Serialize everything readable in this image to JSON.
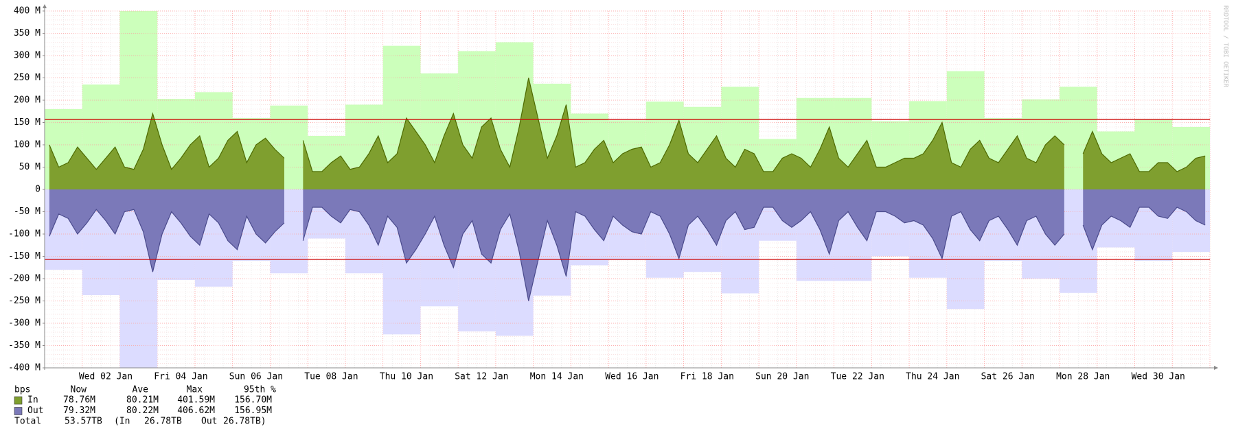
{
  "chart_data": {
    "type": "area",
    "categories": [
      null,
      null,
      null,
      null,
      null,
      null,
      "Wed 02 Jan",
      null,
      null,
      null,
      null,
      null,
      null,
      null,
      "Fri 04 Jan",
      null,
      null,
      null,
      null,
      null,
      null,
      null,
      "Sun 06 Jan",
      null,
      null,
      null,
      null,
      null,
      null,
      null,
      "Tue 08 Jan",
      null,
      null,
      null,
      null,
      null,
      null,
      null,
      "Thu 10 Jan",
      null,
      null,
      null,
      null,
      null,
      null,
      null,
      "Sat 12 Jan",
      null,
      null,
      null,
      null,
      null,
      null,
      null,
      "Mon 14 Jan",
      null,
      null,
      null,
      null,
      null,
      null,
      null,
      "Wed 16 Jan",
      null,
      null,
      null,
      null,
      null,
      null,
      null,
      "Fri 18 Jan",
      null,
      null,
      null,
      null,
      null,
      null,
      null,
      "Sun 20 Jan",
      null,
      null,
      null,
      null,
      null,
      null,
      null,
      "Tue 22 Jan",
      null,
      null,
      null,
      null,
      null,
      null,
      null,
      "Thu 24 Jan",
      null,
      null,
      null,
      null,
      null,
      null,
      null,
      "Sat 26 Jan",
      null,
      null,
      null,
      null,
      null,
      null,
      null,
      "Mon 28 Jan",
      null,
      null,
      null,
      null,
      null,
      null,
      null,
      "Wed 30 Jan",
      null,
      null,
      null,
      null,
      null
    ],
    "series": [
      {
        "name": "In",
        "color": "#7f9f2f",
        "line_color": "#4d6a00",
        "peak_color": "#ccffbb",
        "values": [
          100,
          50,
          60,
          95,
          70,
          45,
          70,
          95,
          50,
          45,
          90,
          170,
          100,
          45,
          70,
          100,
          120,
          50,
          70,
          110,
          130,
          60,
          100,
          115,
          90,
          70,
          null,
          110,
          40,
          40,
          60,
          75,
          45,
          50,
          80,
          120,
          60,
          80,
          160,
          130,
          100,
          60,
          120,
          170,
          100,
          70,
          140,
          160,
          90,
          50,
          140,
          250,
          160,
          70,
          120,
          190,
          50,
          60,
          90,
          110,
          60,
          80,
          90,
          95,
          50,
          60,
          100,
          155,
          80,
          60,
          90,
          120,
          70,
          50,
          90,
          80,
          40,
          40,
          70,
          80,
          70,
          50,
          90,
          140,
          70,
          50,
          80,
          110,
          50,
          50,
          60,
          70,
          70,
          80,
          110,
          150,
          60,
          50,
          90,
          110,
          70,
          60,
          90,
          120,
          70,
          60,
          100,
          120,
          100,
          null,
          80,
          130,
          80,
          60,
          70,
          80,
          40,
          40,
          60,
          60,
          40,
          50,
          70,
          75
        ],
        "peak_values": [
          180,
          235,
          400,
          203,
          218,
          160,
          188,
          120,
          190,
          322,
          260,
          310,
          330,
          237,
          170,
          155,
          197,
          185,
          230,
          113,
          205,
          205,
          153,
          198,
          265,
          160,
          202,
          230,
          130,
          157,
          140
        ]
      },
      {
        "name": "Out",
        "color": "#7b79b9",
        "line_color": "#4a4a8c",
        "peak_color": "#dcdcff",
        "values": [
          -105,
          -55,
          -65,
          -100,
          -75,
          -45,
          -70,
          -100,
          -50,
          -45,
          -95,
          -185,
          -100,
          -50,
          -75,
          -105,
          -125,
          -55,
          -75,
          -115,
          -135,
          -60,
          -100,
          -120,
          -95,
          -75,
          null,
          -115,
          -40,
          -40,
          -60,
          -75,
          -45,
          -50,
          -80,
          -125,
          -60,
          -85,
          -165,
          -135,
          -100,
          -60,
          -125,
          -175,
          -100,
          -70,
          -145,
          -165,
          -90,
          -55,
          -140,
          -250,
          -160,
          -70,
          -125,
          -195,
          -50,
          -60,
          -90,
          -115,
          -60,
          -80,
          -95,
          -100,
          -50,
          -60,
          -100,
          -155,
          -80,
          -60,
          -90,
          -125,
          -70,
          -50,
          -90,
          -85,
          -40,
          -40,
          -70,
          -85,
          -70,
          -50,
          -90,
          -145,
          -70,
          -50,
          -85,
          -115,
          -50,
          -50,
          -60,
          -75,
          -70,
          -80,
          -110,
          -155,
          -60,
          -50,
          -90,
          -115,
          -70,
          -60,
          -90,
          -125,
          -70,
          -60,
          -100,
          -125,
          -100,
          null,
          -80,
          -135,
          -80,
          -60,
          -70,
          -85,
          -40,
          -40,
          -60,
          -65,
          -40,
          -50,
          -70,
          -80
        ],
        "peak_values": [
          -180,
          -237,
          -400,
          -203,
          -218,
          -160,
          -188,
          -110,
          -188,
          -325,
          -262,
          -318,
          -328,
          -238,
          -170,
          -158,
          -198,
          -185,
          -233,
          -115,
          -205,
          -205,
          -150,
          -198,
          -268,
          -160,
          -200,
          -232,
          -130,
          -160,
          -140
        ]
      }
    ],
    "percentile_lines": [
      {
        "value": 156.7,
        "color": "#cc0000"
      },
      {
        "value": -156.95,
        "color": "#cc0000"
      }
    ],
    "ylim": [
      -400,
      400
    ],
    "yticks": [
      {
        "value": -400,
        "label": "-400 M"
      },
      {
        "value": -350,
        "label": "-350 M"
      },
      {
        "value": -300,
        "label": "-300 M"
      },
      {
        "value": -250,
        "label": "-250 M"
      },
      {
        "value": -200,
        "label": "-200 M"
      },
      {
        "value": -150,
        "label": "-150 M"
      },
      {
        "value": -100,
        "label": "-100 M"
      },
      {
        "value": -50,
        "label": "-50 M"
      },
      0,
      {
        "value": 50,
        "label": "50 M"
      },
      {
        "value": 100,
        "label": "100 M"
      },
      {
        "value": 150,
        "label": "150 M"
      },
      {
        "value": 200,
        "label": "200 M"
      },
      {
        "value": 250,
        "label": "250 M"
      },
      {
        "value": 300,
        "label": "300 M"
      },
      {
        "value": 350,
        "label": "350 M"
      },
      {
        "value": 400,
        "label": "400 M"
      }
    ],
    "grid": true,
    "watermark": "RRDTOOL / TOBI OETIKER",
    "legend_table": {
      "columns": [
        "bps",
        "Now",
        "Ave",
        "Max",
        "95th %"
      ],
      "rows": [
        [
          "78.76M",
          "80.21M",
          "401.59M",
          "156.70M"
        ],
        [
          "79.32M",
          "80.22M",
          "406.62M",
          "156.95M"
        ]
      ],
      "total": [
        "Total",
        "53.57TB",
        "(In",
        "26.78TB",
        "Out",
        "26.78TB)"
      ]
    }
  }
}
